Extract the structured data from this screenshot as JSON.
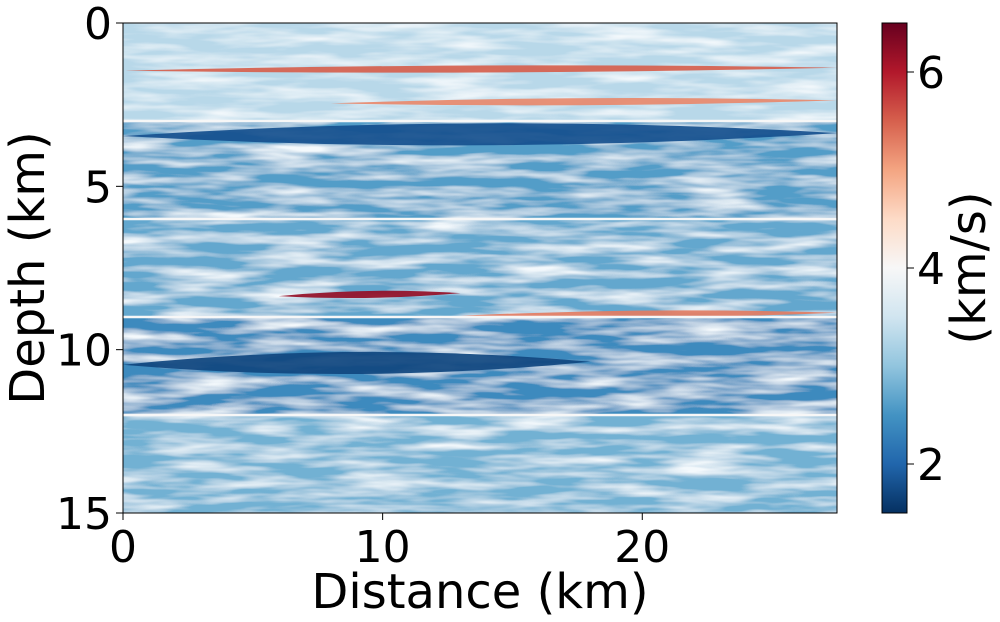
{
  "chart_data": {
    "type": "heatmap",
    "title": "",
    "xlabel": "Distance (km)",
    "ylabel": "Depth (km)",
    "xlim": [
      0,
      27.5
    ],
    "ylim": [
      15,
      0
    ],
    "xticks": [
      0,
      10,
      20
    ],
    "yticks": [
      0,
      5,
      10,
      15
    ],
    "colorbar": {
      "label": "(km/s)",
      "range": [
        1.5,
        6.5
      ],
      "ticks": [
        2,
        4,
        6
      ],
      "colormap": "RdBu_r",
      "colors": [
        "#053061",
        "#2166ac",
        "#4393c3",
        "#92c5de",
        "#d1e5f0",
        "#f7f7f7",
        "#fddbc7",
        "#f4a582",
        "#d6604d",
        "#b2182b",
        "#67001f"
      ]
    },
    "layer_boundaries_depth_km": [
      3,
      6,
      9,
      12
    ],
    "features": [
      {
        "label": "high-velocity streak",
        "depth_km": 1.4,
        "x_km": [
          0,
          27.5
        ],
        "velocity": 5.5
      },
      {
        "label": "high-velocity streak",
        "depth_km": 2.4,
        "x_km": [
          8,
          27.5
        ],
        "velocity": 5.2
      },
      {
        "label": "high-velocity streak",
        "depth_km": 8.3,
        "x_km": [
          6,
          13
        ],
        "velocity": 6.2
      },
      {
        "label": "high-velocity streak",
        "depth_km": 8.9,
        "x_km": [
          13,
          27.5
        ],
        "velocity": 5.3
      },
      {
        "label": "low-velocity body",
        "depth_km": 10.4,
        "x_km": [
          0,
          18
        ],
        "velocity": 1.7
      },
      {
        "label": "low-velocity body",
        "depth_km": 3.4,
        "x_km": [
          0,
          27.5
        ],
        "velocity": 1.8
      }
    ]
  }
}
